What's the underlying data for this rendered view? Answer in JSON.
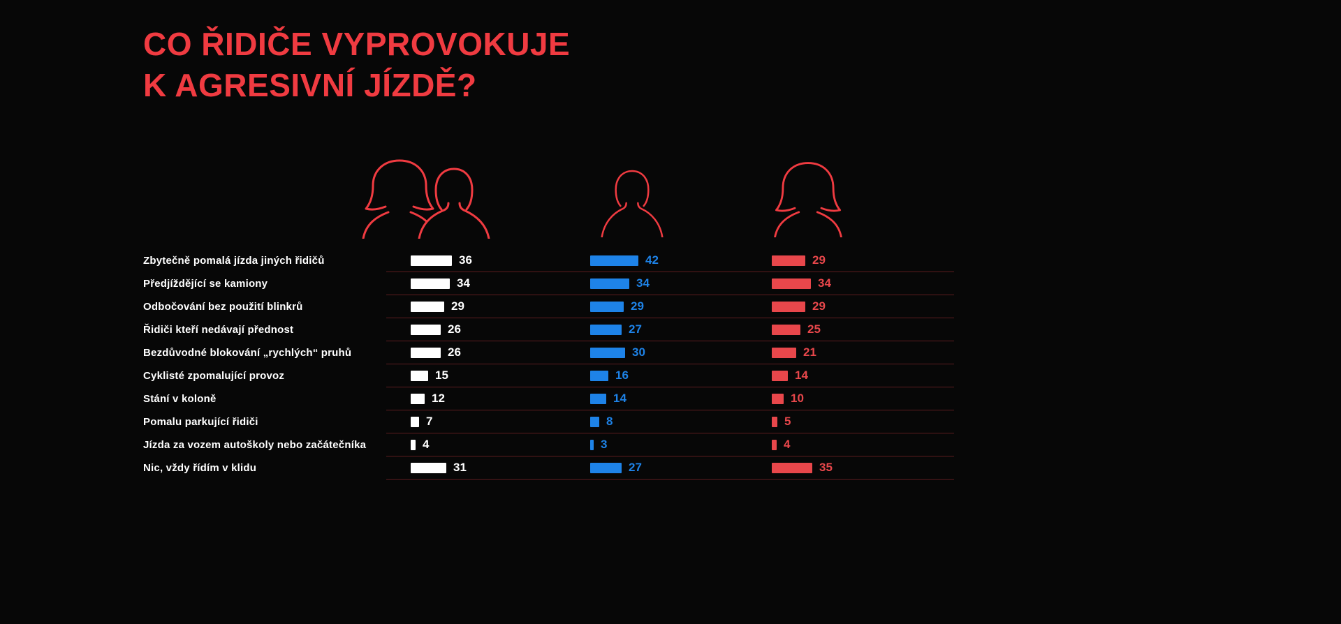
{
  "title": {
    "line1": "CO ŘIDIČE VYPROVOKUJE",
    "line2": "K AGRESIVNÍ JÍZDĚ?"
  },
  "colors": {
    "background": "#070707",
    "accent_red": "#f03b41",
    "divider_red": "#5d1c1f",
    "bar_white": "#ffffff",
    "bar_blue": "#1e83e8",
    "bar_red": "#e8474b"
  },
  "legend": {
    "groups": [
      {
        "id": "all-drivers",
        "icon": "couple-icon"
      },
      {
        "id": "men",
        "icon": "man-icon"
      },
      {
        "id": "women",
        "icon": "woman-icon"
      }
    ]
  },
  "chart_data": {
    "type": "bar",
    "orientation": "horizontal",
    "title": "CO ŘIDIČE VYPROVOKUJE K AGRESIVNÍ JÍZDĚ?",
    "categories": [
      "Zbytečně pomalá jízda jiných řidičů",
      "Předjíždějící se kamiony",
      "Odbočování bez použití blinkrů",
      "Řidiči kteří nedávají přednost",
      "Bezdůvodné blokování „rychlých“ pruhů",
      "Cyklisté zpomalující provoz",
      "Stání v koloně",
      "Pomalu parkující řidiči",
      "Jízda za vozem autoškoly nebo začátečníka",
      "Nic, vždy řídím v klidu"
    ],
    "series": [
      {
        "name": "all-drivers",
        "icon": "couple-icon",
        "color": "#ffffff",
        "values": [
          36,
          34,
          29,
          26,
          26,
          15,
          12,
          7,
          4,
          31
        ]
      },
      {
        "name": "men",
        "icon": "man-icon",
        "color": "#1e83e8",
        "values": [
          42,
          34,
          29,
          27,
          30,
          16,
          14,
          8,
          3,
          27
        ]
      },
      {
        "name": "women",
        "icon": "woman-icon",
        "color": "#e8474b",
        "values": [
          29,
          34,
          29,
          25,
          21,
          14,
          10,
          5,
          4,
          35
        ]
      }
    ],
    "value_labels": true,
    "xlim": [
      0,
      45
    ],
    "grid": false,
    "legend_position": "top-icons"
  }
}
